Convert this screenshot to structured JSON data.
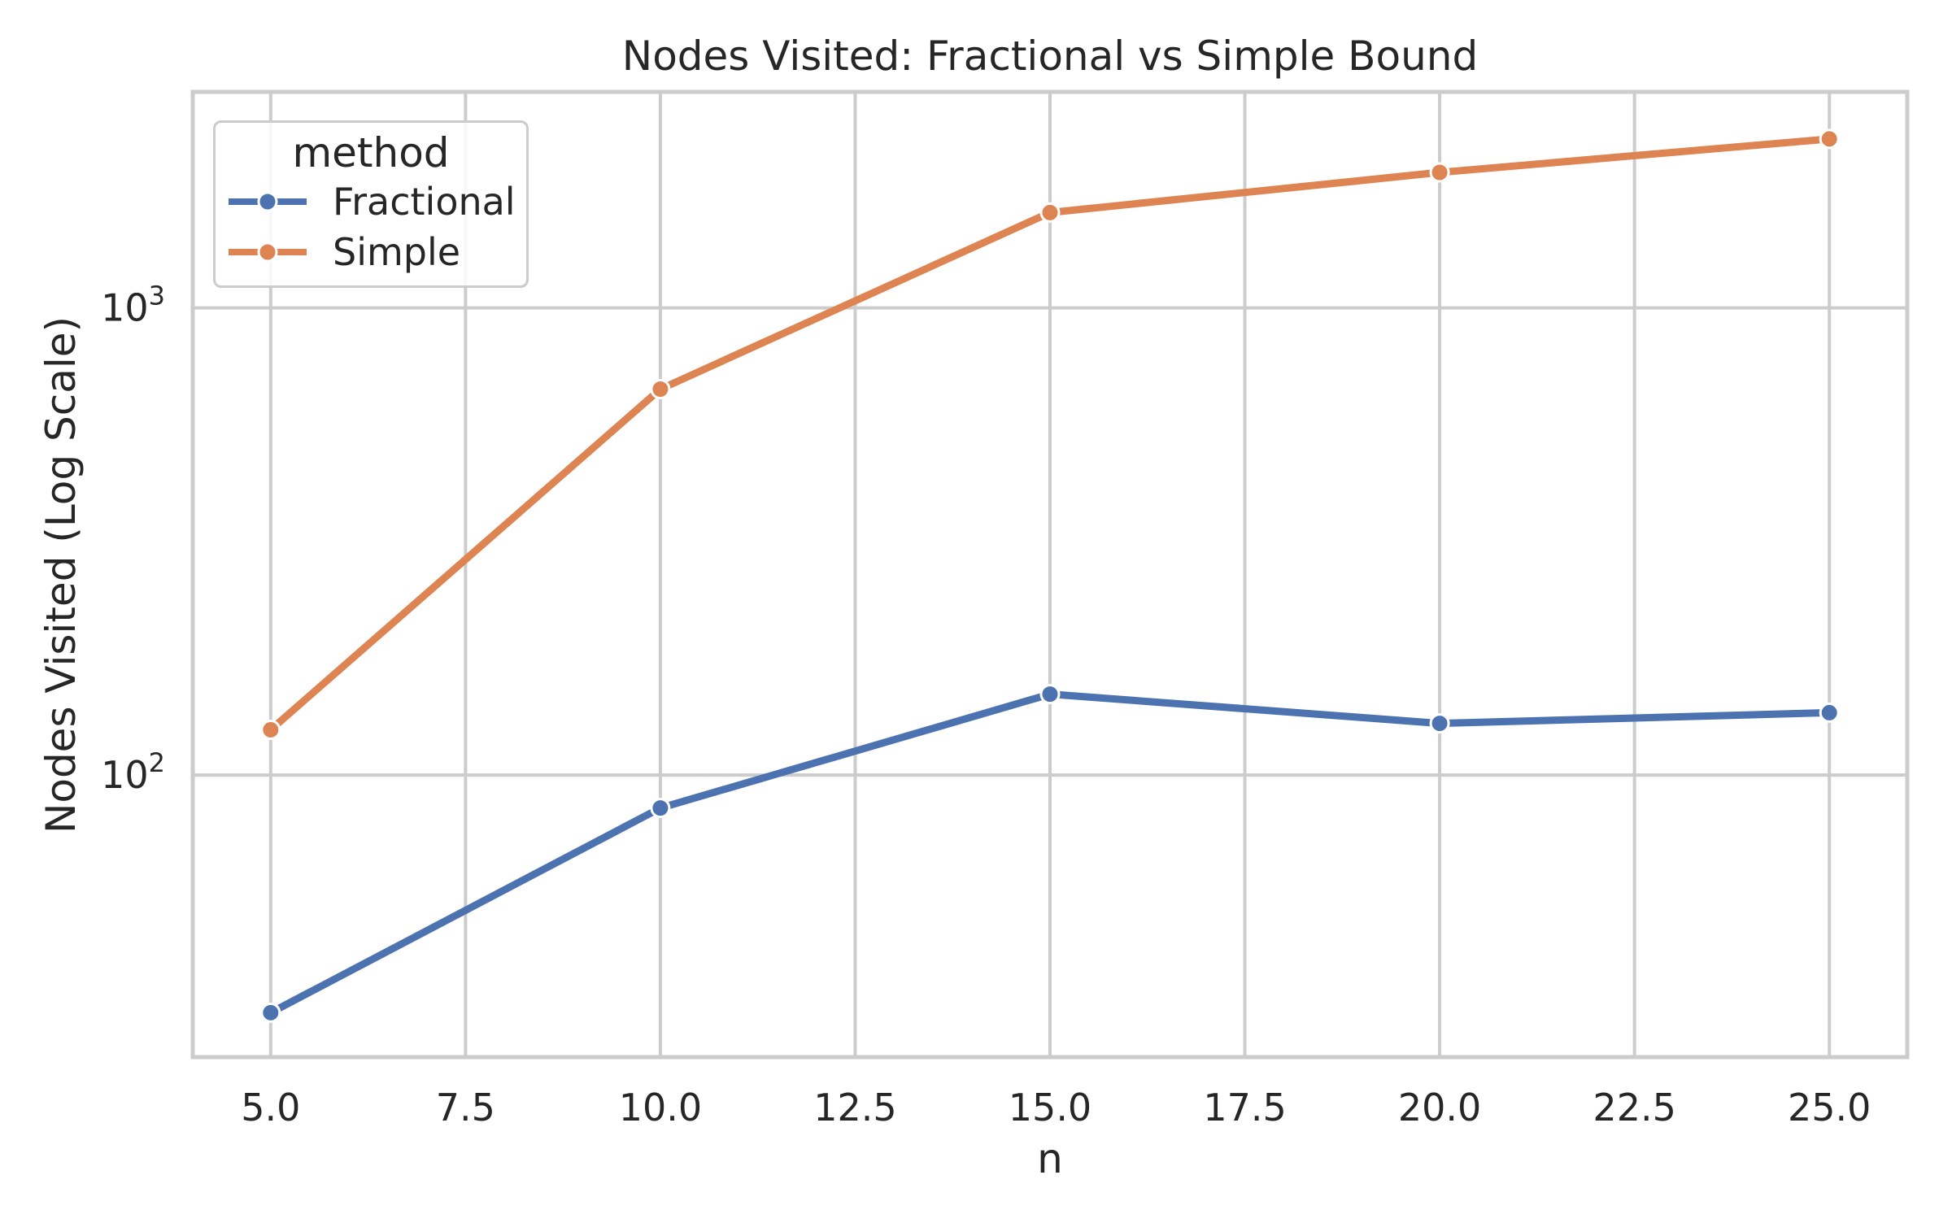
{
  "style": {
    "background": "#ffffff",
    "grid_color": "#cccccc",
    "spine_color": "#cccccc",
    "text_color": "#262626",
    "marker_edge_color": "#ffffff"
  },
  "chart_data": {
    "type": "line",
    "title": "Nodes Visited: Fractional vs Simple Bound",
    "xlabel": "n",
    "ylabel": "Nodes Visited (Log Scale)",
    "x": [
      5,
      10,
      15,
      20,
      25
    ],
    "series": [
      {
        "name": "Fractional",
        "color": "#4C72B0",
        "values": [
          31,
          85,
          149,
          129,
          136
        ]
      },
      {
        "name": "Simple",
        "color": "#DD8452",
        "values": [
          125,
          670,
          1600,
          1950,
          2300
        ]
      }
    ],
    "x_ticks": [
      5.0,
      7.5,
      10.0,
      12.5,
      15.0,
      17.5,
      20.0,
      22.5,
      25.0
    ],
    "x_tick_labels": [
      "5.0",
      "7.5",
      "10.0",
      "12.5",
      "15.0",
      "17.5",
      "20.0",
      "22.5",
      "25.0"
    ],
    "y_ticks": [
      {
        "value": 100,
        "mantissa": "10",
        "exponent": "2"
      },
      {
        "value": 1000,
        "mantissa": "10",
        "exponent": "3"
      }
    ],
    "y_scale": "log",
    "xlim": [
      4,
      26
    ],
    "ylim": [
      24.9,
      2900
    ],
    "grid": true,
    "marker": "o",
    "legend": {
      "title": "method",
      "position": "upper left"
    }
  }
}
